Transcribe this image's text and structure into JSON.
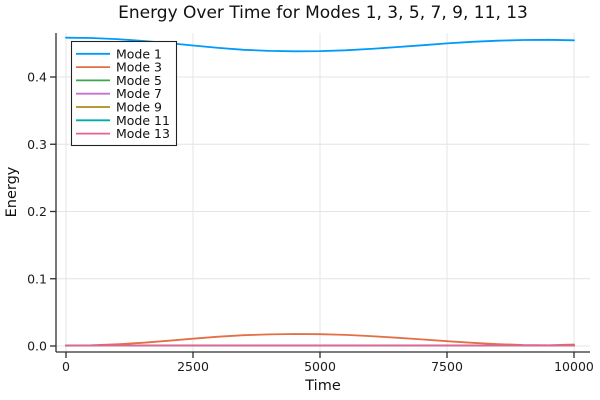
{
  "chart_data": {
    "type": "line",
    "title": "Energy Over Time for Modes 1, 3, 5, 7, 9, 11, 13",
    "xlabel": "Time",
    "ylabel": "Energy",
    "xlim": [
      -200,
      10300
    ],
    "ylim": [
      -0.009,
      0.465
    ],
    "grid": true,
    "legend_position": "top-left",
    "axis_color": "#2e2e2e",
    "grid_color": "#e4e4e4",
    "xticks": {
      "values": [
        0,
        2500,
        5000,
        7500,
        10000
      ],
      "labels": [
        "0",
        "2500",
        "5000",
        "7500",
        "10000"
      ]
    },
    "yticks": {
      "values": [
        0.0,
        0.1,
        0.2,
        0.3,
        0.4
      ],
      "labels": [
        "0.0",
        "0.1",
        "0.2",
        "0.3",
        "0.4"
      ]
    },
    "x": [
      0,
      500,
      1000,
      1500,
      2000,
      2500,
      3000,
      3500,
      4000,
      4500,
      5000,
      5500,
      6000,
      6500,
      7000,
      7500,
      8000,
      8500,
      9000,
      9500,
      10000
    ],
    "series": [
      {
        "name": "Mode 1",
        "color": "#009AFA",
        "values": [
          0.4585,
          0.458,
          0.4563,
          0.4537,
          0.4505,
          0.4468,
          0.4432,
          0.4405,
          0.4388,
          0.4382,
          0.4385,
          0.4397,
          0.4418,
          0.4444,
          0.4472,
          0.45,
          0.4523,
          0.454,
          0.455,
          0.4553,
          0.4545
        ]
      },
      {
        "name": "Mode 3",
        "color": "#E36F47",
        "values": [
          0.0005,
          0.001,
          0.0025,
          0.0048,
          0.0077,
          0.0108,
          0.0138,
          0.016,
          0.0173,
          0.0178,
          0.0176,
          0.0165,
          0.0147,
          0.0124,
          0.0098,
          0.0072,
          0.0048,
          0.0028,
          0.0015,
          0.001,
          0.0022
        ]
      },
      {
        "name": "Mode 5",
        "color": "#3EA44E",
        "values": [
          0.0008,
          0.0008,
          0.0008,
          0.0008,
          0.0008,
          0.0008,
          0.0008,
          0.0008,
          0.0008,
          0.0008,
          0.0008,
          0.0008,
          0.0008,
          0.0008,
          0.0008,
          0.0008,
          0.0008,
          0.0008,
          0.0008,
          0.0008,
          0.0008
        ]
      },
      {
        "name": "Mode 7",
        "color": "#C371D2",
        "values": [
          0.0008,
          0.0008,
          0.0008,
          0.0008,
          0.0008,
          0.0008,
          0.0008,
          0.0008,
          0.0008,
          0.0008,
          0.0008,
          0.0008,
          0.0008,
          0.0008,
          0.0008,
          0.0008,
          0.0008,
          0.0008,
          0.0008,
          0.0008,
          0.0008
        ]
      },
      {
        "name": "Mode 9",
        "color": "#AC8E18",
        "values": [
          0.0008,
          0.0008,
          0.0008,
          0.0008,
          0.0008,
          0.0008,
          0.0008,
          0.0008,
          0.0008,
          0.0008,
          0.0008,
          0.0008,
          0.0008,
          0.0008,
          0.0008,
          0.0008,
          0.0008,
          0.0008,
          0.0008,
          0.0008,
          0.0008
        ]
      },
      {
        "name": "Mode 11",
        "color": "#00AAAE",
        "values": [
          0.0008,
          0.0008,
          0.0008,
          0.0008,
          0.0008,
          0.0008,
          0.0008,
          0.0008,
          0.0008,
          0.0008,
          0.0008,
          0.0008,
          0.0008,
          0.0008,
          0.0008,
          0.0008,
          0.0008,
          0.0008,
          0.0008,
          0.0008,
          0.0008
        ]
      },
      {
        "name": "Mode 13",
        "color": "#ED5E93",
        "values": [
          0.0008,
          0.0008,
          0.0008,
          0.0008,
          0.0008,
          0.0008,
          0.0008,
          0.0008,
          0.0008,
          0.0008,
          0.0008,
          0.0008,
          0.0008,
          0.0008,
          0.0008,
          0.0008,
          0.0008,
          0.0008,
          0.0008,
          0.0008,
          0.0008
        ]
      }
    ]
  }
}
